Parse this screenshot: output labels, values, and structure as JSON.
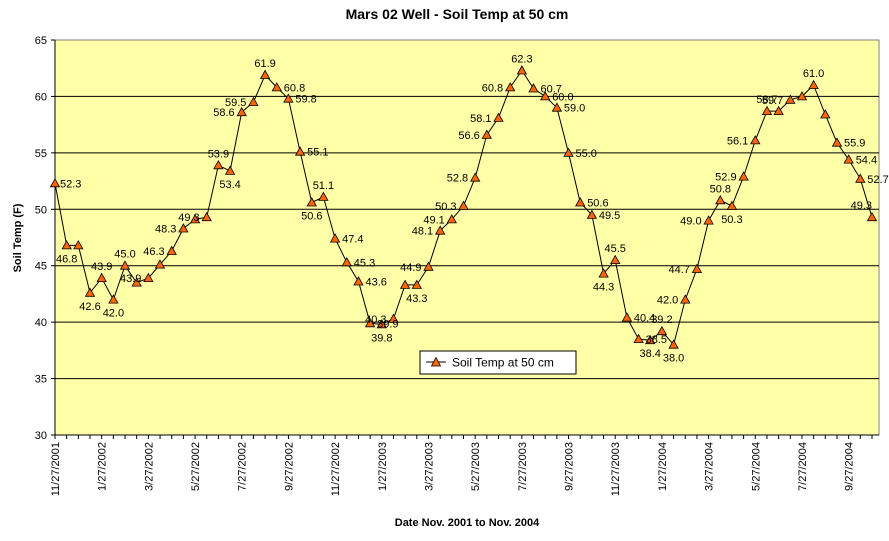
{
  "chart_data": {
    "type": "line",
    "title": "Mars 02 Well - Soil Temp at 50 cm",
    "xlabel": "Date Nov. 2001 to Nov. 2004",
    "ylabel": "Soil Temp (F)",
    "ylim": [
      30,
      65
    ],
    "yticks": [
      "30",
      "35",
      "40",
      "45",
      "50",
      "55",
      "60",
      "65"
    ],
    "xtick_labels": [
      "11/27/2001",
      "1/27/2002",
      "3/27/2002",
      "5/27/2002",
      "7/27/2002",
      "9/27/2002",
      "11/27/2002",
      "1/27/2003",
      "3/27/2003",
      "5/27/2003",
      "7/27/2003",
      "9/27/2003",
      "11/27/2003",
      "1/27/2004",
      "3/27/2004",
      "5/27/2004",
      "7/27/2004",
      "9/27/2004"
    ],
    "grid": "horizontal",
    "legend_position": "center",
    "colors": {
      "plot_bg": "#FFFFA8",
      "line": "#000000",
      "marker": "#FF6600",
      "grid": "#000000"
    },
    "series": [
      {
        "name": "Soil Temp at 50 cm",
        "values": [
          52.3,
          46.8,
          46.8,
          42.6,
          43.9,
          42.0,
          45.0,
          43.5,
          43.9,
          45.1,
          46.3,
          48.3,
          49.1,
          49.3,
          53.9,
          53.4,
          58.6,
          59.5,
          61.9,
          60.8,
          59.8,
          55.1,
          50.6,
          51.1,
          47.4,
          45.3,
          43.6,
          39.9,
          39.8,
          40.3,
          43.3,
          43.3,
          44.9,
          48.1,
          49.1,
          50.3,
          52.8,
          56.6,
          58.1,
          60.8,
          62.3,
          60.7,
          60.0,
          59.0,
          55.0,
          50.6,
          49.5,
          44.3,
          45.5,
          40.4,
          38.5,
          38.4,
          39.2,
          38.0,
          42.0,
          44.7,
          49.0,
          50.8,
          50.3,
          52.9,
          56.1,
          58.7,
          58.7,
          59.7,
          60.0,
          61.0,
          58.4,
          55.9,
          54.4,
          52.7,
          49.3
        ],
        "labels": [
          "52.3",
          "46.8",
          "",
          "42.6",
          "43.9",
          "42.0",
          "45.0",
          "",
          "43.9",
          "",
          "46.3",
          "48.3",
          "",
          "49.3",
          "53.9",
          "53.4",
          "58.6",
          "59.5",
          "61.9",
          "60.8",
          "59.8",
          "55.1",
          "50.6",
          "51.1",
          "47.4",
          "45.3",
          "43.6",
          "39.9",
          "39.8",
          "40.3",
          "",
          "43.3",
          "44.9",
          "48.1",
          "49.1",
          "50.3",
          "52.8",
          "56.6",
          "58.1",
          "60.8",
          "62.3",
          "60.7",
          "60.0",
          "59.0",
          "55.0",
          "50.6",
          "49.5",
          "44.3",
          "45.5",
          "40.4",
          "38.5",
          "38.4",
          "39.2",
          "38.0",
          "42.0",
          "44.7",
          "49.0",
          "50.8",
          "50.3",
          "52.9",
          "56.1",
          "58.7",
          "",
          "59.7",
          "",
          "61.0",
          "",
          "55.9",
          "54.4",
          "52.7",
          "49.3"
        ]
      }
    ]
  }
}
